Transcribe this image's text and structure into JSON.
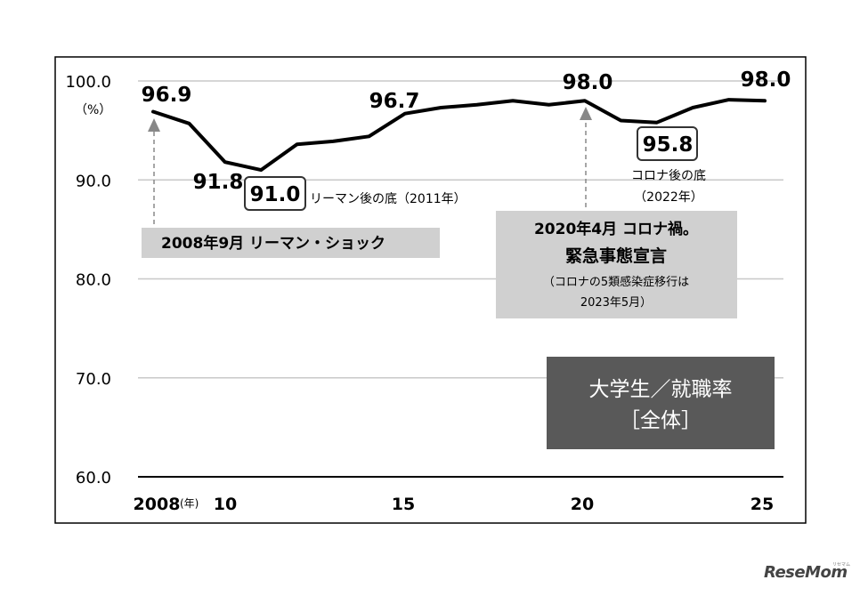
{
  "chart_data": {
    "type": "line",
    "x": [
      2008,
      2009,
      2010,
      2011,
      2012,
      2013,
      2014,
      2015,
      2016,
      2017,
      2018,
      2019,
      2020,
      2021,
      2022,
      2023,
      2024,
      2025
    ],
    "series": [
      {
        "values": [
          96.9,
          95.7,
          91.8,
          91.0,
          93.6,
          93.9,
          94.4,
          96.7,
          97.3,
          97.6,
          98.0,
          97.6,
          98.0,
          96.0,
          95.8,
          97.3,
          98.1,
          98.0
        ]
      }
    ],
    "ylim": [
      60,
      100
    ],
    "xlim": [
      2008,
      2025
    ],
    "y_ticks": [
      "100.0",
      "90.0",
      "80.0",
      "70.0",
      "60.0"
    ],
    "y_unit": "（%）",
    "x_ticks": [
      "2008",
      "10",
      "15",
      "20",
      "25"
    ],
    "x_unit": "(年)",
    "point_labels": [
      "96.9",
      "91.8",
      "91.0",
      "96.7",
      "98.0",
      "95.8",
      "98.0"
    ],
    "annotations": {
      "lehman_bottom": "リーマン後の底（2011年）",
      "lehman_event": "2008年9月 リーマン・ショック",
      "corona_event_line1": "2020年4月 コロナ禍。",
      "corona_event_line2": "緊急事態宣言",
      "corona_event_note1": "（コロナの5類感染症移行は",
      "corona_event_note2": "2023年5月）",
      "corona_bottom_line1": "コロナ後の底",
      "corona_bottom_line2": "（2022年）"
    },
    "title_box": {
      "line1": "大学生／就職率",
      "line2": "［全体］"
    },
    "grid": true,
    "colors": {
      "line": "#000000",
      "gray_box": "#d0d0d0",
      "title_box": "#595959",
      "arrow": "#888888",
      "grid": "#c8c8c8"
    }
  },
  "watermark": {
    "logo": "ReseMom",
    "sub": "リセマム"
  }
}
